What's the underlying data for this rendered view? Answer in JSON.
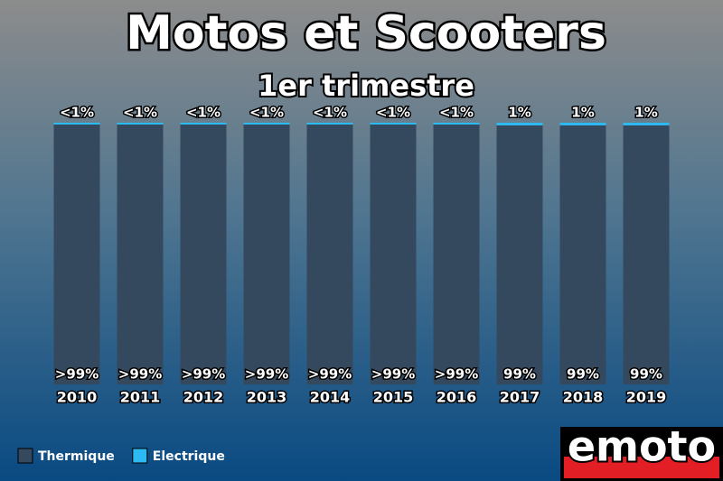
{
  "chart_data": {
    "type": "stacked_bar",
    "title": "Motos et Scooters",
    "subtitle": "1er trimestre",
    "categories": [
      "2010",
      "2011",
      "2012",
      "2013",
      "2014",
      "2015",
      "2016",
      "2017",
      "2018",
      "2019"
    ],
    "series": [
      {
        "name": "Thermique",
        "color": "#34495e",
        "values": [
          99.5,
          99.5,
          99.5,
          99.5,
          99.5,
          99.5,
          99.5,
          99,
          99,
          99
        ],
        "value_labels": [
          ">99%",
          ">99%",
          ">99%",
          ">99%",
          ">99%",
          ">99%",
          ">99%",
          "99%",
          "99%",
          "99%"
        ]
      },
      {
        "name": "Electrique",
        "color": "#2bbbf2",
        "values": [
          0.5,
          0.5,
          0.5,
          0.5,
          0.5,
          0.5,
          0.5,
          1,
          1,
          1
        ],
        "value_labels": [
          "<1%",
          "<1%",
          "<1%",
          "<1%",
          "<1%",
          "<1%",
          "<1%",
          "1%",
          "1%",
          "1%"
        ]
      }
    ],
    "logo": "emoto"
  }
}
